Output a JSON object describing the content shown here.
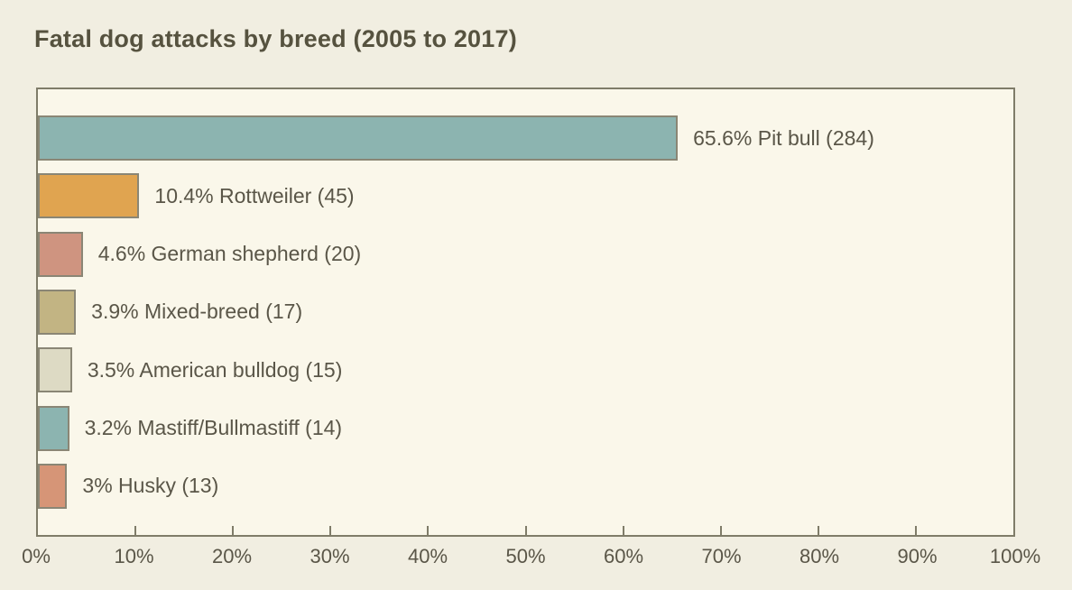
{
  "title": "Fatal dog attacks by breed (2005 to 2017)",
  "colors": {
    "page_background": "#f1eee1",
    "plot_background": "#faf7ea",
    "axis": "#7f7c69",
    "bar_border": "#8a8675",
    "text": "#5a5648",
    "title_text": "#56523f"
  },
  "chart_data": {
    "type": "bar",
    "orientation": "horizontal",
    "title": "Fatal dog attacks by breed (2005 to 2017)",
    "categories": [
      "Pit bull",
      "Rottweiler",
      "German shepherd",
      "Mixed-breed",
      "American bulldog",
      "Mastiff/Bullmastiff",
      "Husky"
    ],
    "values_percent": [
      65.6,
      10.4,
      4.6,
      3.9,
      3.5,
      3.2,
      3.0
    ],
    "counts": [
      284,
      45,
      20,
      17,
      15,
      14,
      13
    ],
    "bar_labels": [
      "65.6% Pit bull (284)",
      "10.4% Rottweiler (45)",
      "4.6% German shepherd (20)",
      "3.9% Mixed-breed (17)",
      "3.5% American bulldog (15)",
      "3.2% Mastiff/Bullmastiff (14)",
      "3% Husky (13)"
    ],
    "bar_colors": [
      "#8cb4b0",
      "#e0a450",
      "#cf9480",
      "#c2b483",
      "#dddac4",
      "#8cb4b0",
      "#d69577"
    ],
    "x_tick_values": [
      0,
      10,
      20,
      30,
      40,
      50,
      60,
      70,
      80,
      90,
      100
    ],
    "x_tick_labels": [
      "0%",
      "10%",
      "20%",
      "30%",
      "40%",
      "50%",
      "60%",
      "70%",
      "80%",
      "90%",
      "100%"
    ],
    "xlabel": "",
    "ylabel": "",
    "xlim": [
      0,
      100
    ],
    "grid": false,
    "legend": false
  }
}
